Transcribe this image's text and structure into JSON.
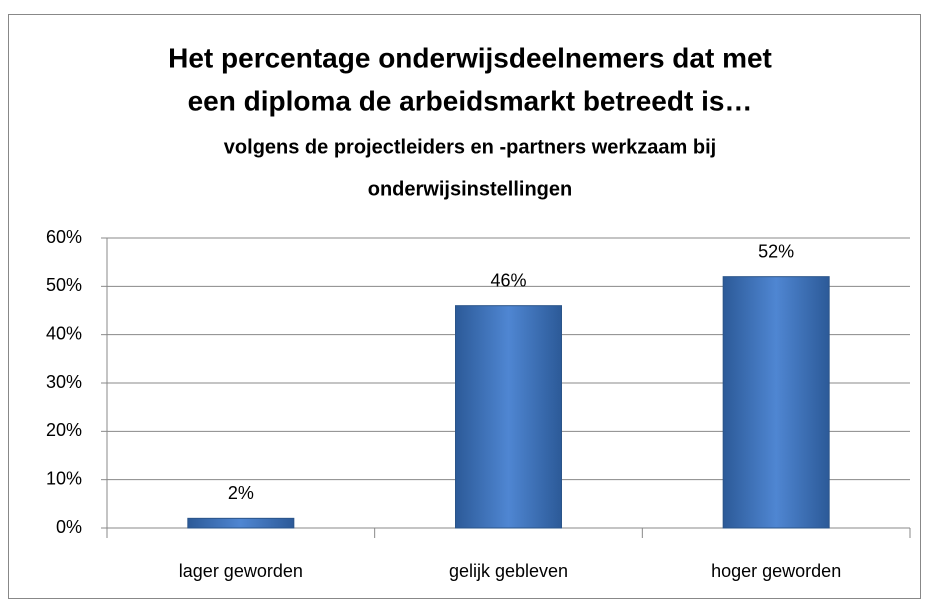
{
  "chart_data": {
    "type": "bar",
    "title": [
      "Het percentage onderwijsdeelnemers dat met",
      "een diploma de arbeidsmarkt betreedt is…"
    ],
    "subtitle": [
      "volgens de projectleiders en -partners werkzaam bij",
      "onderwijsinstellingen"
    ],
    "categories": [
      "lager geworden",
      "gelijk gebleven",
      "hoger geworden"
    ],
    "values": [
      2,
      46,
      52
    ],
    "value_labels": [
      "2%",
      "46%",
      "52%"
    ],
    "color": "#4a7ec8",
    "ylim": [
      0,
      60
    ],
    "yticks": [
      {
        "value": 0,
        "label": "0%"
      },
      {
        "value": 10,
        "label": "10%"
      },
      {
        "value": 20,
        "label": "20%"
      },
      {
        "value": 30,
        "label": "30%"
      },
      {
        "value": 40,
        "label": "40%"
      },
      {
        "value": 50,
        "label": "50%"
      },
      {
        "value": 60,
        "label": "60%"
      }
    ],
    "grid": true
  }
}
